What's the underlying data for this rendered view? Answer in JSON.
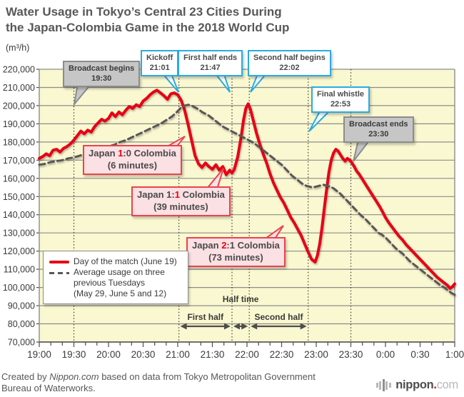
{
  "title": {
    "line1": "Water Usage in Tokyo’s Central 23 Cities During",
    "line2": "the Japan-Colombia Game in the 2018 World Cup"
  },
  "y_axis": {
    "unit": "(m³/h)",
    "ticks": [
      "220,000",
      "210,000",
      "200,000",
      "190,000",
      "180,000",
      "170,000",
      "160,000",
      "150,000",
      "140,000",
      "130,000",
      "120,000",
      "110,000",
      "100,000",
      "90,000",
      "80,000",
      "70,000"
    ]
  },
  "x_axis": {
    "ticks": [
      "19:00",
      "19:30",
      "20:00",
      "20:30",
      "21:00",
      "21:30",
      "22:00",
      "22:30",
      "23:00",
      "23:30",
      "0:00",
      "0:30",
      "1:00"
    ]
  },
  "legend": {
    "day_label": "Day of the match (June 19)",
    "avg_line1": "Average usage on three",
    "avg_line2": "previous Tuesdays",
    "avg_line3": "(May 29, June 5 and 12)"
  },
  "footer": {
    "credit_pre": "Created by ",
    "credit_brand": "Nippon.com",
    "credit_post": " based on data from Tokyo Metropolitan Government",
    "credit_line2": "Bureau of Waterworks.",
    "logo_brand": "nippon",
    "logo_dot": ".",
    "logo_tld": "com"
  },
  "chart_data": {
    "type": "line",
    "title": "Water Usage in Tokyo’s Central 23 Cities During the Japan-Colombia Game in the 2018 World Cup",
    "ylabel": "(m³/h)",
    "ylim": [
      70000,
      220000
    ],
    "y_tick_step": 10000,
    "x_unit": "minutes after 19:00",
    "x_tick_minutes": [
      0,
      30,
      60,
      90,
      120,
      150,
      180,
      210,
      240,
      270,
      300,
      330,
      360
    ],
    "grid": "horizontal",
    "legend_position": "inside-left",
    "events": [
      {
        "label": "Broadcast begins",
        "time": "19:30",
        "minute": 30
      },
      {
        "label": "Kickoff",
        "time": "21:01",
        "minute": 121
      },
      {
        "label": "First half ends",
        "time": "21:47",
        "minute": 167
      },
      {
        "label": "Second half begins",
        "time": "22:02",
        "minute": 182
      },
      {
        "label": "Final whistle",
        "time": "22:53",
        "minute": 233
      },
      {
        "label": "Broadcast ends",
        "time": "23:30",
        "minute": 270
      }
    ],
    "goals": [
      {
        "pre": "Japan ",
        "red": "1",
        "post": ":0 Colombia",
        "note": "(6 minutes)"
      },
      {
        "pre": "Japan 1:",
        "red": "1",
        "post": " Colombia",
        "note": "(39 minutes)"
      },
      {
        "pre": "Japan ",
        "red": "2",
        "post": ":1 Colombia",
        "note": "(73 minutes)"
      }
    ],
    "phases": [
      {
        "label": "First half",
        "start": 121,
        "end": 167
      },
      {
        "label": "Half time",
        "start": 167,
        "end": 182
      },
      {
        "label": "Second half",
        "start": 182,
        "end": 233
      }
    ],
    "series": [
      {
        "name": "Day of the match (June 19)",
        "color": "#e60012",
        "style": "solid",
        "points": [
          [
            0,
            171000
          ],
          [
            3,
            172000
          ],
          [
            6,
            173500
          ],
          [
            9,
            172500
          ],
          [
            12,
            175500
          ],
          [
            15,
            176000
          ],
          [
            18,
            174500
          ],
          [
            21,
            176500
          ],
          [
            24,
            177500
          ],
          [
            27,
            179000
          ],
          [
            30,
            181000
          ],
          [
            33,
            183500
          ],
          [
            36,
            186000
          ],
          [
            39,
            184500
          ],
          [
            42,
            186500
          ],
          [
            45,
            185500
          ],
          [
            48,
            188500
          ],
          [
            51,
            190500
          ],
          [
            54,
            192500
          ],
          [
            57,
            191500
          ],
          [
            60,
            193000
          ],
          [
            63,
            196000
          ],
          [
            66,
            194000
          ],
          [
            69,
            196500
          ],
          [
            72,
            195000
          ],
          [
            75,
            197500
          ],
          [
            78,
            199500
          ],
          [
            81,
            198500
          ],
          [
            84,
            200500
          ],
          [
            87,
            199500
          ],
          [
            90,
            202500
          ],
          [
            93,
            204000
          ],
          [
            96,
            206000
          ],
          [
            99,
            207500
          ],
          [
            102,
            208500
          ],
          [
            105,
            207000
          ],
          [
            108,
            205500
          ],
          [
            111,
            203500
          ],
          [
            114,
            206500
          ],
          [
            117,
            207000
          ],
          [
            120,
            206000
          ],
          [
            123,
            203000
          ],
          [
            126,
            197500
          ],
          [
            129,
            189500
          ],
          [
            132,
            181000
          ],
          [
            135,
            172500
          ],
          [
            138,
            168000
          ],
          [
            141,
            166000
          ],
          [
            144,
            168500
          ],
          [
            147,
            166500
          ],
          [
            150,
            165000
          ],
          [
            153,
            167500
          ],
          [
            156,
            164500
          ],
          [
            159,
            166500
          ],
          [
            162,
            162000
          ],
          [
            165,
            164500
          ],
          [
            167,
            163000
          ],
          [
            169,
            165000
          ],
          [
            172,
            172000
          ],
          [
            175,
            183000
          ],
          [
            177,
            192000
          ],
          [
            179,
            198500
          ],
          [
            181,
            201000
          ],
          [
            183,
            198000
          ],
          [
            185,
            193000
          ],
          [
            188,
            185500
          ],
          [
            191,
            179000
          ],
          [
            194,
            173500
          ],
          [
            197,
            168500
          ],
          [
            200,
            162500
          ],
          [
            203,
            157500
          ],
          [
            206,
            153500
          ],
          [
            209,
            149500
          ],
          [
            212,
            146500
          ],
          [
            215,
            142500
          ],
          [
            218,
            138500
          ],
          [
            221,
            135500
          ],
          [
            224,
            132000
          ],
          [
            227,
            128500
          ],
          [
            230,
            124000
          ],
          [
            233,
            119500
          ],
          [
            236,
            115500
          ],
          [
            239,
            114000
          ],
          [
            241,
            117500
          ],
          [
            243,
            124000
          ],
          [
            245,
            133000
          ],
          [
            247,
            143500
          ],
          [
            249,
            154000
          ],
          [
            251,
            163500
          ],
          [
            253,
            170000
          ],
          [
            255,
            174000
          ],
          [
            257,
            176000
          ],
          [
            259,
            175000
          ],
          [
            261,
            173000
          ],
          [
            263,
            171000
          ],
          [
            265,
            169500
          ],
          [
            267,
            171000
          ],
          [
            269,
            170000
          ],
          [
            271,
            168500
          ],
          [
            273,
            166500
          ],
          [
            275,
            164000
          ],
          [
            277,
            162500
          ],
          [
            279,
            160500
          ],
          [
            281,
            158500
          ],
          [
            283,
            156500
          ],
          [
            286,
            153500
          ],
          [
            289,
            150500
          ],
          [
            292,
            147500
          ],
          [
            295,
            144500
          ],
          [
            298,
            141000
          ],
          [
            300,
            138500
          ],
          [
            303,
            135500
          ],
          [
            306,
            133000
          ],
          [
            309,
            130500
          ],
          [
            312,
            128000
          ],
          [
            315,
            126000
          ],
          [
            318,
            123500
          ],
          [
            321,
            121500
          ],
          [
            324,
            119500
          ],
          [
            327,
            117500
          ],
          [
            330,
            115500
          ],
          [
            333,
            113500
          ],
          [
            336,
            111500
          ],
          [
            339,
            109500
          ],
          [
            342,
            107500
          ],
          [
            345,
            105500
          ],
          [
            348,
            104000
          ],
          [
            351,
            102500
          ],
          [
            354,
            101000
          ],
          [
            356,
            99500
          ],
          [
            358,
            100500
          ],
          [
            360,
            102000
          ]
        ]
      },
      {
        "name": "Average usage on three previous Tuesdays (May 29, June 5 and 12)",
        "color": "#595757",
        "style": "dashed",
        "points": [
          [
            0,
            167500
          ],
          [
            5,
            168000
          ],
          [
            10,
            169000
          ],
          [
            15,
            169500
          ],
          [
            20,
            170000
          ],
          [
            25,
            171000
          ],
          [
            30,
            171500
          ],
          [
            35,
            172500
          ],
          [
            40,
            173500
          ],
          [
            45,
            174500
          ],
          [
            50,
            175500
          ],
          [
            55,
            176500
          ],
          [
            60,
            177500
          ],
          [
            65,
            178500
          ],
          [
            70,
            180000
          ],
          [
            75,
            181000
          ],
          [
            80,
            182500
          ],
          [
            85,
            184000
          ],
          [
            90,
            185500
          ],
          [
            95,
            187000
          ],
          [
            100,
            188500
          ],
          [
            105,
            190000
          ],
          [
            110,
            192000
          ],
          [
            115,
            194000
          ],
          [
            120,
            197000
          ],
          [
            123,
            199000
          ],
          [
            126,
            200000
          ],
          [
            129,
            200500
          ],
          [
            132,
            200000
          ],
          [
            135,
            199000
          ],
          [
            138,
            198000
          ],
          [
            141,
            196500
          ],
          [
            144,
            195500
          ],
          [
            147,
            194500
          ],
          [
            150,
            193000
          ],
          [
            153,
            191500
          ],
          [
            156,
            190000
          ],
          [
            159,
            188500
          ],
          [
            162,
            187500
          ],
          [
            165,
            186500
          ],
          [
            168,
            185500
          ],
          [
            171,
            184500
          ],
          [
            174,
            183500
          ],
          [
            177,
            182500
          ],
          [
            180,
            181500
          ],
          [
            183,
            180500
          ],
          [
            186,
            179500
          ],
          [
            189,
            178000
          ],
          [
            192,
            176500
          ],
          [
            195,
            175000
          ],
          [
            198,
            173500
          ],
          [
            201,
            172000
          ],
          [
            204,
            170500
          ],
          [
            207,
            169000
          ],
          [
            210,
            167500
          ],
          [
            213,
            165500
          ],
          [
            216,
            163500
          ],
          [
            219,
            161500
          ],
          [
            222,
            160000
          ],
          [
            225,
            158500
          ],
          [
            228,
            157000
          ],
          [
            231,
            156000
          ],
          [
            234,
            155500
          ],
          [
            237,
            155000
          ],
          [
            240,
            155500
          ],
          [
            243,
            156000
          ],
          [
            246,
            156500
          ],
          [
            249,
            156000
          ],
          [
            252,
            155500
          ],
          [
            255,
            154500
          ],
          [
            258,
            153000
          ],
          [
            261,
            151500
          ],
          [
            264,
            149500
          ],
          [
            267,
            147500
          ],
          [
            270,
            145500
          ],
          [
            273,
            143500
          ],
          [
            276,
            141500
          ],
          [
            279,
            139500
          ],
          [
            282,
            138000
          ],
          [
            285,
            136000
          ],
          [
            288,
            134000
          ],
          [
            291,
            132000
          ],
          [
            294,
            130000
          ],
          [
            297,
            129000
          ],
          [
            300,
            127500
          ],
          [
            303,
            125500
          ],
          [
            306,
            123500
          ],
          [
            309,
            121500
          ],
          [
            312,
            120000
          ],
          [
            315,
            118500
          ],
          [
            318,
            116500
          ],
          [
            321,
            114500
          ],
          [
            324,
            113000
          ],
          [
            327,
            111500
          ],
          [
            330,
            110000
          ],
          [
            333,
            108500
          ],
          [
            336,
            107000
          ],
          [
            339,
            105500
          ],
          [
            342,
            104000
          ],
          [
            345,
            102500
          ],
          [
            348,
            101000
          ],
          [
            351,
            100000
          ],
          [
            354,
            98500
          ],
          [
            357,
            97000
          ],
          [
            360,
            96000
          ]
        ]
      }
    ]
  }
}
